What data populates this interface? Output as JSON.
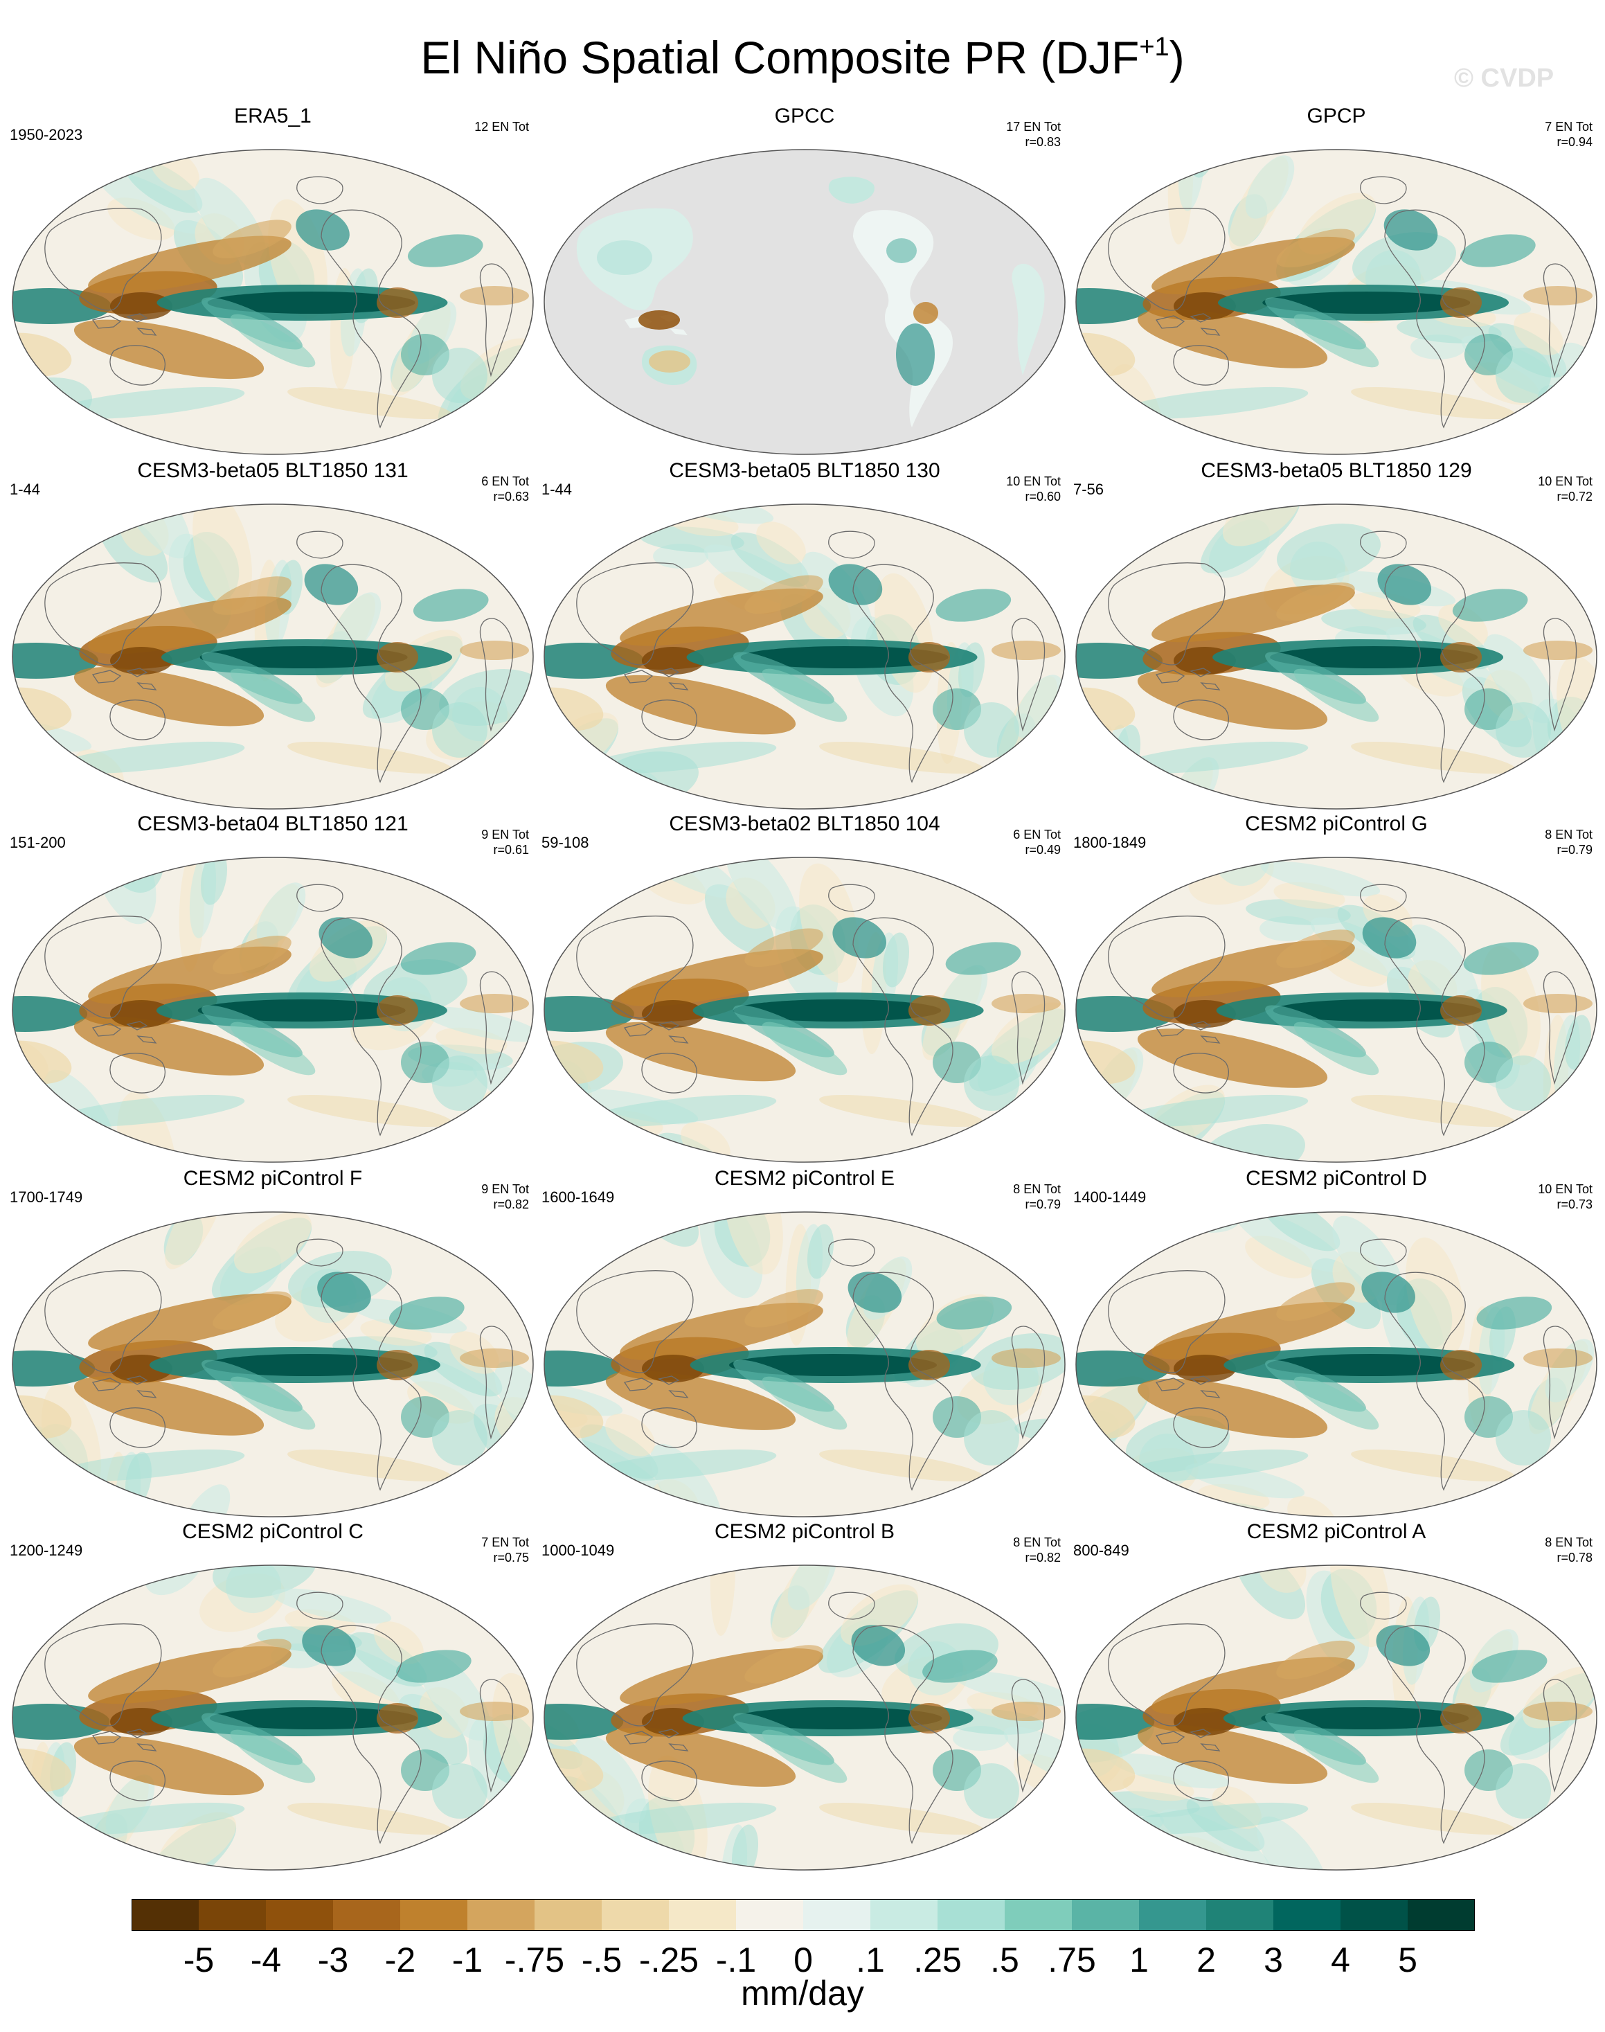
{
  "title": {
    "main": "El Niño Spatial Composite PR (DJF",
    "sup": "+1",
    "close": ")"
  },
  "watermark": "© CVDP",
  "panels": [
    {
      "name": "ERA5_1",
      "period": "1950-2023",
      "count": "12 EN Tot",
      "r": "",
      "style": "obs"
    },
    {
      "name": "GPCC",
      "period": "",
      "count": "17 EN Tot",
      "r": "r=0.83",
      "style": "land"
    },
    {
      "name": "GPCP",
      "period": "",
      "count": "7 EN Tot",
      "r": "r=0.94",
      "style": "obs"
    },
    {
      "name": "CESM3-beta05 BLT1850 131",
      "period": "1-44",
      "count": "6 EN Tot",
      "r": "r=0.63",
      "style": "model"
    },
    {
      "name": "CESM3-beta05 BLT1850 130",
      "period": "1-44",
      "count": "10 EN Tot",
      "r": "r=0.60",
      "style": "model"
    },
    {
      "name": "CESM3-beta05 BLT1850 129",
      "period": "7-56",
      "count": "10 EN Tot",
      "r": "r=0.72",
      "style": "model"
    },
    {
      "name": "CESM3-beta04 BLT1850 121",
      "period": "151-200",
      "count": "9 EN Tot",
      "r": "r=0.61",
      "style": "model"
    },
    {
      "name": "CESM3-beta02 BLT1850 104",
      "period": "59-108",
      "count": "6 EN Tot",
      "r": "r=0.49",
      "style": "model"
    },
    {
      "name": "CESM2 piControl G",
      "period": "1800-1849",
      "count": "8 EN Tot",
      "r": "r=0.79",
      "style": "model"
    },
    {
      "name": "CESM2 piControl F",
      "period": "1700-1749",
      "count": "9 EN Tot",
      "r": "r=0.82",
      "style": "model"
    },
    {
      "name": "CESM2 piControl E",
      "period": "1600-1649",
      "count": "8 EN Tot",
      "r": "r=0.79",
      "style": "model"
    },
    {
      "name": "CESM2 piControl D",
      "period": "1400-1449",
      "count": "10 EN Tot",
      "r": "r=0.73",
      "style": "model"
    },
    {
      "name": "CESM2 piControl C",
      "period": "1200-1249",
      "count": "7 EN Tot",
      "r": "r=0.75",
      "style": "model"
    },
    {
      "name": "CESM2 piControl B",
      "period": "1000-1049",
      "count": "8 EN Tot",
      "r": "r=0.82",
      "style": "model"
    },
    {
      "name": "CESM2 piControl A",
      "period": "800-849",
      "count": "8 EN Tot",
      "r": "r=0.78",
      "style": "model"
    }
  ],
  "colorbar": {
    "units": "mm/day",
    "labels": [
      "-5",
      "-4",
      "-3",
      "-2",
      "-1",
      "-.75",
      "-.5",
      "-.25",
      "-.1",
      "0",
      ".1",
      ".25",
      ".5",
      ".75",
      "1",
      "2",
      "3",
      "4",
      "5"
    ],
    "colors": [
      "#543005",
      "#7a4508",
      "#8f510c",
      "#a8661c",
      "#bf812d",
      "#d4a55e",
      "#e3c386",
      "#eed9aa",
      "#f5e8c8",
      "#f5f2ea",
      "#e6f2ef",
      "#c9ebe3",
      "#a8e0d5",
      "#7fcdbb",
      "#5ab4a6",
      "#35978f",
      "#1f8377",
      "#01665e",
      "#005248",
      "#003c30"
    ]
  }
}
